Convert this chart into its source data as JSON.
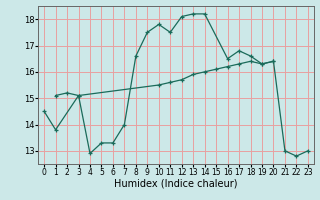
{
  "xlabel": "Humidex (Indice chaleur)",
  "bg_color": "#cce8e8",
  "grid_color": "#e8a0a0",
  "line_color": "#1a6b5a",
  "xlim": [
    -0.5,
    23.5
  ],
  "ylim": [
    12.5,
    18.5
  ],
  "xticks": [
    0,
    1,
    2,
    3,
    4,
    5,
    6,
    7,
    8,
    9,
    10,
    11,
    12,
    13,
    14,
    15,
    16,
    17,
    18,
    19,
    20,
    21,
    22,
    23
  ],
  "yticks": [
    13,
    14,
    15,
    16,
    17,
    18
  ],
  "curve1_x": [
    0,
    1,
    3,
    4,
    5,
    6,
    7,
    8,
    9,
    10,
    11,
    12,
    13,
    14,
    16,
    17,
    18,
    19,
    20,
    21,
    22,
    23
  ],
  "curve1_y": [
    14.5,
    13.8,
    15.1,
    12.9,
    13.3,
    13.3,
    14.0,
    16.6,
    17.5,
    17.8,
    17.5,
    18.1,
    18.2,
    18.2,
    16.5,
    16.8,
    16.6,
    16.3,
    16.4,
    13.0,
    12.8,
    13.0
  ],
  "curve2_x": [
    1,
    2,
    3,
    10,
    11,
    12,
    13,
    14,
    15,
    16,
    17,
    18,
    19,
    20
  ],
  "curve2_y": [
    15.1,
    15.2,
    15.1,
    15.5,
    15.6,
    15.7,
    15.9,
    16.0,
    16.1,
    16.2,
    16.3,
    16.4,
    16.3,
    16.4
  ]
}
